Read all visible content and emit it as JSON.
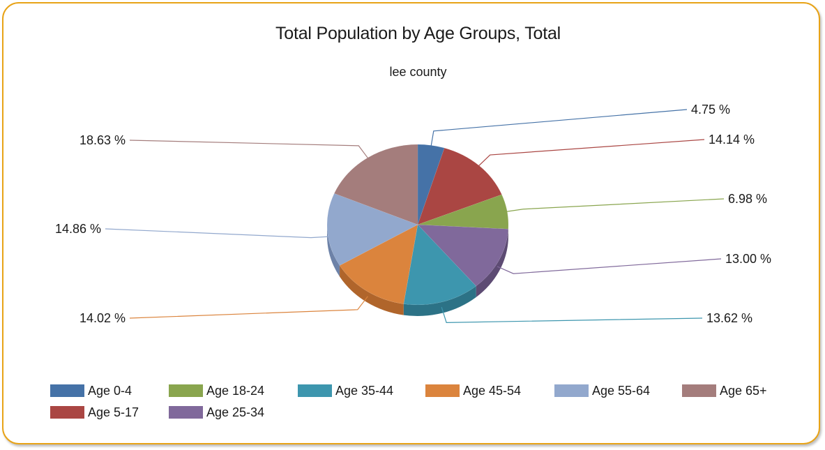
{
  "chart_data": {
    "type": "pie",
    "title": "Total Population by Age Groups, Total",
    "subtitle": "lee county",
    "slices": [
      {
        "name": "Age 0-4",
        "value": 4.75,
        "label": "4.75 %",
        "color": "#4572a7",
        "side": "#305585"
      },
      {
        "name": "Age 5-17",
        "value": 14.14,
        "label": "14.14 %",
        "color": "#aa4643",
        "side": "#843431"
      },
      {
        "name": "Age 18-24",
        "value": 6.98,
        "label": "6.98 %",
        "color": "#89a54e",
        "side": "#667c38"
      },
      {
        "name": "Age 25-34",
        "value": 13.0,
        "label": "13.00 %",
        "color": "#80699b",
        "side": "#5d4b73"
      },
      {
        "name": "Age 35-44",
        "value": 13.62,
        "label": "13.62 %",
        "color": "#3d96ae",
        "side": "#2c7286"
      },
      {
        "name": "Age 45-54",
        "value": 14.02,
        "label": "14.02 %",
        "color": "#db843d",
        "side": "#b0652b"
      },
      {
        "name": "Age 55-64",
        "value": 14.86,
        "label": "14.86 %",
        "color": "#92a8cd",
        "side": "#6d82a8"
      },
      {
        "name": "Age 65+",
        "value": 18.63,
        "label": "18.63 %",
        "color": "#a47d7c",
        "side": "#7f5d5c"
      }
    ],
    "legend": {
      "placement": "bottom-left",
      "order": [
        "Age 0-4",
        "Age 18-24",
        "Age 35-44",
        "Age 45-54",
        "Age 55-64",
        "Age 65+",
        "Age 5-17",
        "Age 25-34"
      ]
    }
  }
}
